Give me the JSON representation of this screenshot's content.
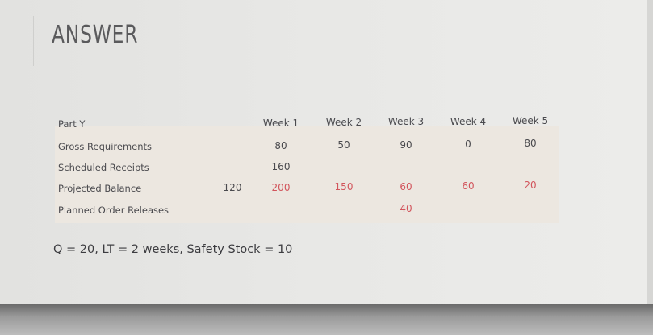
{
  "title": "ANSWER",
  "table": {
    "part_label": "Part Y",
    "weeks": [
      "Week 1",
      "Week 2",
      "Week 3",
      "Week 4",
      "Week 5"
    ],
    "rows": [
      {
        "label": "Gross Requirements",
        "initial": "",
        "values": [
          "80",
          "50",
          "90",
          "0",
          "80"
        ],
        "highlight": false
      },
      {
        "label": "Scheduled Receipts",
        "initial": "",
        "values": [
          "160",
          "",
          "",
          "",
          ""
        ],
        "highlight": false
      },
      {
        "label": "Projected Balance",
        "initial": "120",
        "values": [
          "200",
          "150",
          "60",
          "60",
          "20"
        ],
        "highlight": true
      },
      {
        "label": "Planned Order Releases",
        "initial": "",
        "values": [
          "",
          "",
          "40",
          "",
          ""
        ],
        "highlight": true
      }
    ]
  },
  "note": "Q = 20, LT = 2 weeks, Safety Stock = 10",
  "colors": {
    "highlight": "#d2555c",
    "table_bg": "#ece7e0"
  }
}
